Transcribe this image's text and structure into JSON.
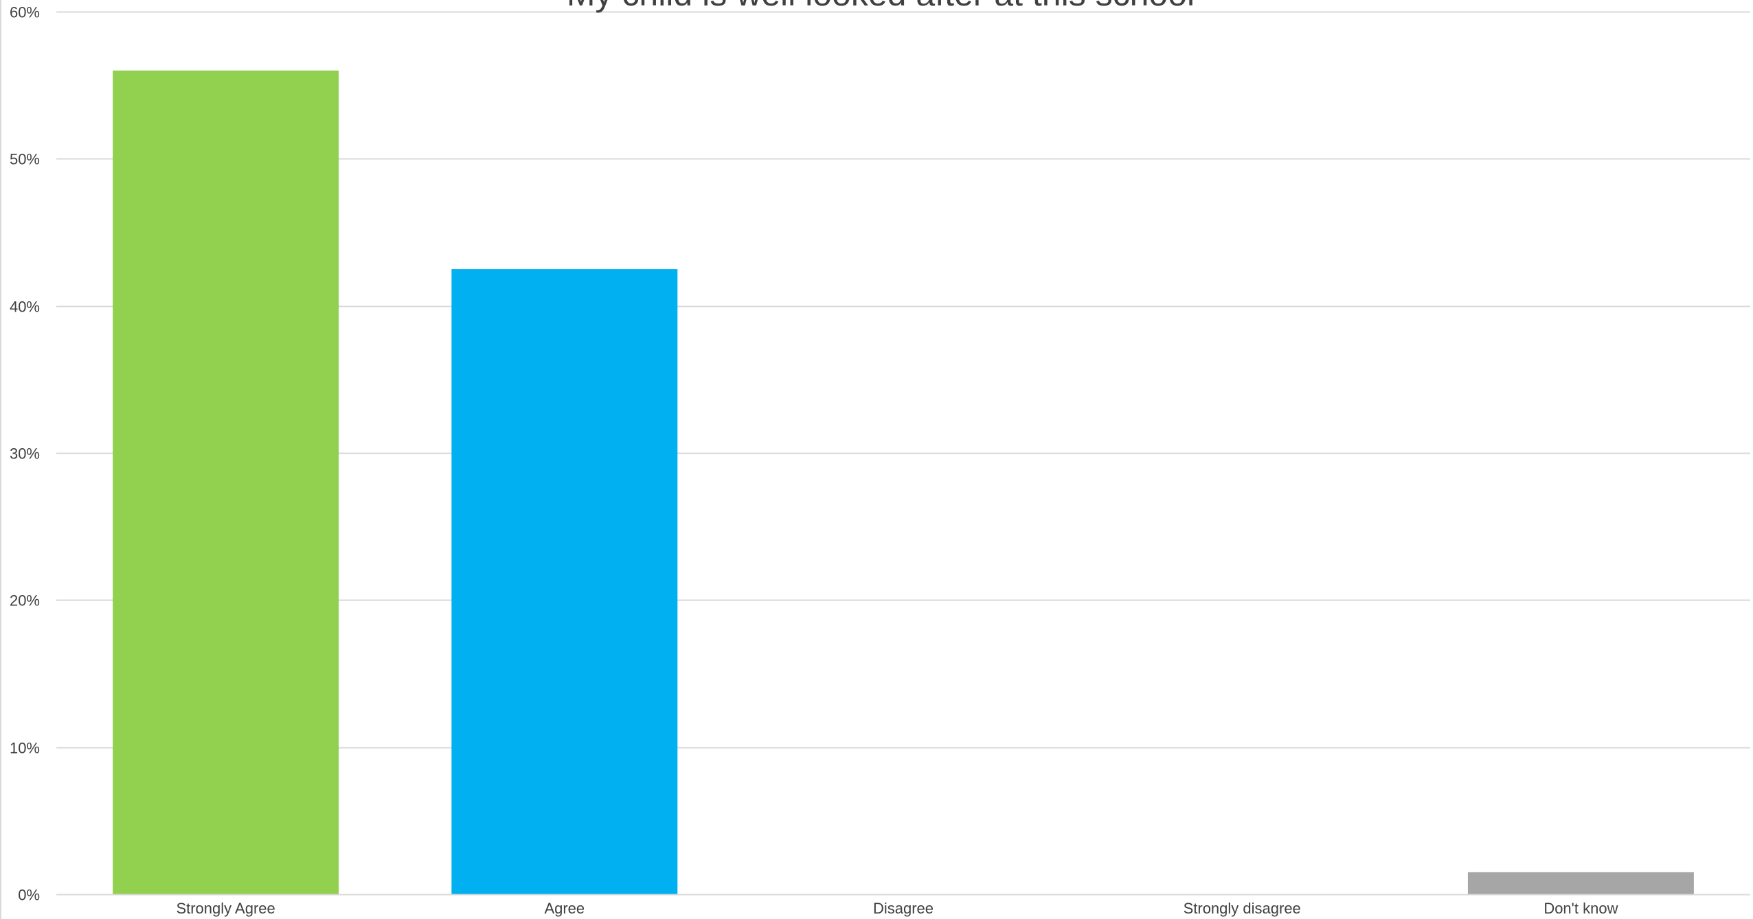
{
  "chart_data": {
    "type": "bar",
    "title": "My child is well looked after at this school",
    "xlabel": "",
    "ylabel": "",
    "categories": [
      "Strongly Agree",
      "Agree",
      "Disagree",
      "Strongly disagree",
      "Don't know"
    ],
    "values": [
      56,
      42.5,
      0,
      0,
      1.5
    ],
    "unit": "%",
    "ylim": [
      0,
      60
    ],
    "yticks": [
      0,
      10,
      20,
      30,
      40,
      50,
      60
    ],
    "ytick_labels": [
      "0%",
      "10%",
      "20%",
      "30%",
      "40%",
      "50%",
      "60%"
    ],
    "grid": true,
    "legend": "none",
    "colors": [
      "#92d050",
      "#00b0f0",
      "#92d050",
      "#00b0f0",
      "#a6a6a6"
    ],
    "gridline_color": "#d9d9d9",
    "axis_color": "#d9d9d9",
    "text_color": "#404040"
  }
}
